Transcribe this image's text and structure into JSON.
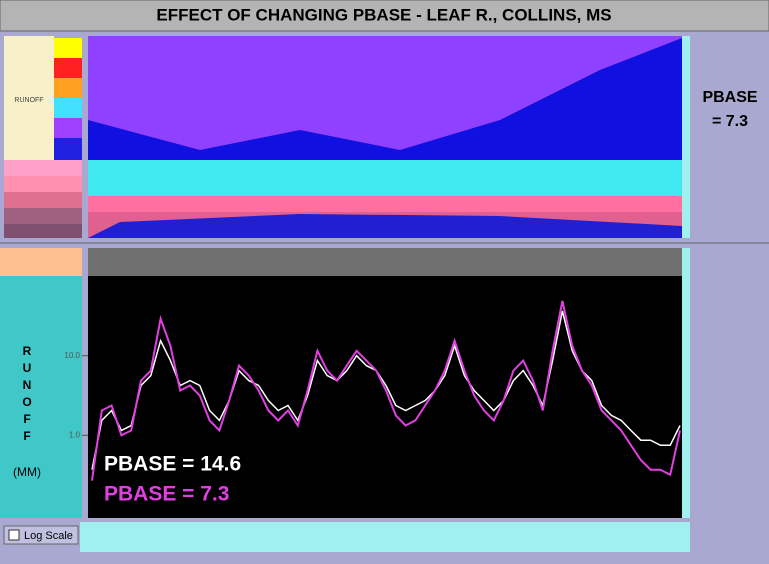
{
  "chart_data": {
    "type": "line",
    "title": "EFFECT OF CHANGING PBASE - LEAF R., COLLINS, MS",
    "side_label": [
      "PBASE",
      "= 7.3"
    ],
    "panel_label": "RUNOFF",
    "y_label": "RUNOFF",
    "y_unit": "(MM)",
    "checkbox_label": "Log Scale",
    "log_scale": true,
    "ylim": [
      0.1,
      100
    ],
    "yticks": [
      {
        "value": 10,
        "label": "10.0"
      },
      {
        "value": 1,
        "label": "1.0"
      }
    ],
    "series": [
      {
        "name": "PBASE = 14.6",
        "color": "#ffffff",
        "values": [
          0.37,
          1.54,
          2.05,
          1.15,
          1.33,
          4.22,
          5.62,
          15.4,
          8.66,
          4.22,
          4.87,
          4.22,
          2.05,
          1.54,
          2.74,
          6.49,
          4.87,
          4.22,
          2.74,
          2.05,
          2.37,
          1.54,
          3.16,
          8.66,
          5.62,
          4.87,
          6.49,
          10,
          7.5,
          6.49,
          4.22,
          2.37,
          2.05,
          2.37,
          2.74,
          3.65,
          5.62,
          13.3,
          5.62,
          3.65,
          2.74,
          2.05,
          2.74,
          4.87,
          6.49,
          4.22,
          2.37,
          8.66,
          36.5,
          11.5,
          6.49,
          4.87,
          2.37,
          1.78,
          1.54,
          1.15,
          0.87,
          0.87,
          0.75,
          0.75,
          1.33
        ]
      },
      {
        "name": "PBASE = 7.3",
        "color": "#e040e0",
        "values": [
          0.27,
          2.05,
          2.37,
          1,
          1.15,
          4.87,
          6.49,
          29,
          13.3,
          3.65,
          4.22,
          3.16,
          1.54,
          1.15,
          2.74,
          7.5,
          5.62,
          3.65,
          2.05,
          1.54,
          2.05,
          1.33,
          3.65,
          11.5,
          6.49,
          4.87,
          7.5,
          11.5,
          8.66,
          6.49,
          3.65,
          1.78,
          1.33,
          1.54,
          2.37,
          3.65,
          6.49,
          15.4,
          6.49,
          3.16,
          2.05,
          1.54,
          2.74,
          6.49,
          8.66,
          4.87,
          2.05,
          11.5,
          48.7,
          13.3,
          6.49,
          4.22,
          2.05,
          1.54,
          1.15,
          0.75,
          0.49,
          0.37,
          0.37,
          0.32,
          1.15
        ]
      }
    ]
  }
}
